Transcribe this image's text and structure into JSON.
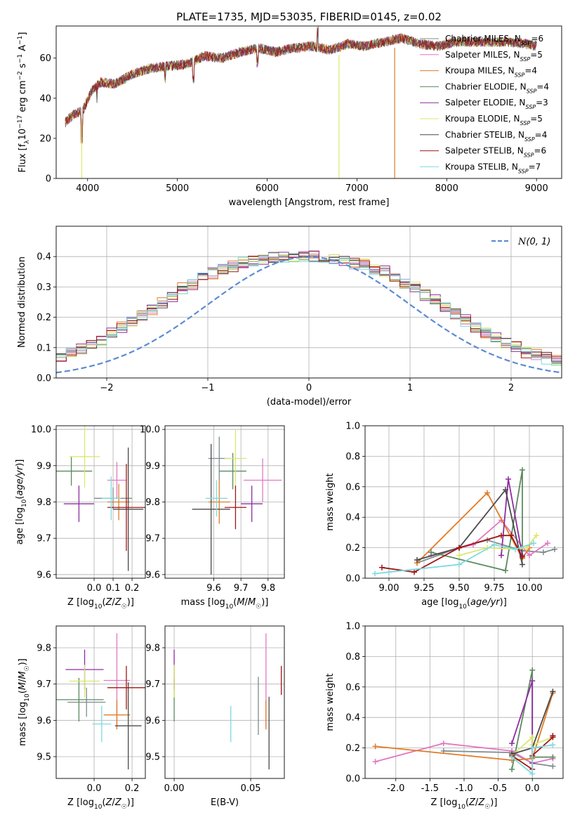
{
  "page_title": "PLATE=1735, MJD=53035, FIBERID=0145, z=0.02",
  "models": [
    {
      "name": "Chabrier MILES",
      "nssp": "6",
      "color": "#7f8c8d"
    },
    {
      "name": "Salpeter MILES",
      "nssp": "5",
      "color": "#e377c2"
    },
    {
      "name": "Kroupa MILES",
      "nssp": "4",
      "color": "#e07b26"
    },
    {
      "name": "Chabrier ELODIE",
      "nssp": "4",
      "color": "#5a8a5e"
    },
    {
      "name": "Salpeter ELODIE",
      "nssp": "3",
      "color": "#8e2ca0"
    },
    {
      "name": "Kroupa ELODIE",
      "nssp": "5",
      "color": "#dbe86a"
    },
    {
      "name": "Chabrier STELIB",
      "nssp": "4",
      "color": "#4a4a4a"
    },
    {
      "name": "Salpeter STELIB",
      "nssp": "6",
      "color": "#a01616"
    },
    {
      "name": "Kroupa STELIB",
      "nssp": "7",
      "color": "#7fd9e0"
    }
  ],
  "legend_nssp_label": "N",
  "legend_nssp_sub": "SSP",
  "chart_data": [
    {
      "id": "spectrum",
      "type": "line",
      "title": "PLATE=1735, MJD=53035, FIBERID=0145, z=0.02",
      "xlabel": "wavelength [Angstrom, rest frame]",
      "ylabel": "Flux [f_λ 10^-17 erg cm^-2 s^-1 A^-1]",
      "xlim": [
        3650,
        9280
      ],
      "ylim": [
        0,
        76
      ],
      "xticks": [
        4000,
        5000,
        6000,
        7000,
        8000,
        9000
      ],
      "yticks": [
        0,
        20,
        40,
        60
      ],
      "continuum": [
        [
          3750,
          28
        ],
        [
          3850,
          32
        ],
        [
          3950,
          34
        ],
        [
          4050,
          44
        ],
        [
          4150,
          48
        ],
        [
          4300,
          47
        ],
        [
          4500,
          52
        ],
        [
          4700,
          55
        ],
        [
          4900,
          56
        ],
        [
          5100,
          57
        ],
        [
          5300,
          61
        ],
        [
          5500,
          60
        ],
        [
          5700,
          63
        ],
        [
          5900,
          65
        ],
        [
          6100,
          63
        ],
        [
          6300,
          65
        ],
        [
          6500,
          66
        ],
        [
          6700,
          64
        ],
        [
          6900,
          67
        ],
        [
          7100,
          66
        ],
        [
          7300,
          68
        ],
        [
          7500,
          70
        ],
        [
          7700,
          67
        ],
        [
          7900,
          66
        ],
        [
          8100,
          68
        ],
        [
          8300,
          68
        ],
        [
          8500,
          68
        ],
        [
          8700,
          68
        ],
        [
          8900,
          67
        ],
        [
          9000,
          66
        ]
      ],
      "absorption_dips": [
        [
          3935,
          0
        ],
        [
          6800,
          0
        ],
        [
          7420,
          0
        ]
      ]
    },
    {
      "id": "residual-histogram",
      "type": "histogram",
      "xlabel": "(data-model)/error",
      "ylabel": "Normed distribution",
      "xlim": [
        -2.5,
        2.5
      ],
      "ylim": [
        0,
        0.5
      ],
      "xticks": [
        -2,
        -1,
        0,
        1,
        2
      ],
      "yticks": [
        0.0,
        0.1,
        0.2,
        0.3,
        0.4
      ],
      "bin_width": 0.1,
      "gaussian_label": "N(0,1)",
      "gaussian_color": "#5b8bd4",
      "series_base": [
        0.04,
        0.045,
        0.05,
        0.055,
        0.06,
        0.07,
        0.085,
        0.095,
        0.11,
        0.13,
        0.145,
        0.165,
        0.185,
        0.205,
        0.225,
        0.245,
        0.27,
        0.295,
        0.31,
        0.33,
        0.345,
        0.36,
        0.37,
        0.38,
        0.385,
        0.39,
        0.395,
        0.4,
        0.4,
        0.4,
        0.4,
        0.4,
        0.395,
        0.39,
        0.38,
        0.375,
        0.36,
        0.35,
        0.33,
        0.31,
        0.3,
        0.275,
        0.255,
        0.235,
        0.215,
        0.19,
        0.17,
        0.15,
        0.13,
        0.115,
        0.1,
        0.085,
        0.075,
        0.065,
        0.055,
        0.05,
        0.045,
        0.04,
        0.035,
        0.03
      ],
      "series_noise": [
        0.012,
        0.018,
        0.02,
        0.015,
        0.02,
        0.018,
        0.016,
        0.02,
        0.022
      ]
    },
    {
      "id": "age-vs-z",
      "type": "errorbar",
      "xlabel": "Z [log10(Z/Z☉)]",
      "ylabel": "age [log10(age/yr)]",
      "xlim": [
        -0.2,
        0.27
      ],
      "ylim": [
        9.59,
        10.01
      ],
      "xticks": [
        0.0,
        0.1,
        0.2
      ],
      "yticks": [
        9.6,
        9.7,
        9.8,
        9.9,
        10.0
      ],
      "points": [
        {
          "x": 0.1,
          "xerr": 0.1,
          "y": 9.81,
          "yerr": 0.03
        },
        {
          "x": 0.12,
          "xerr": 0.05,
          "y": 9.86,
          "yerr": 0.05
        },
        {
          "x": 0.13,
          "xerr": 0.06,
          "y": 9.8,
          "yerr": 0.05
        },
        {
          "x": -0.12,
          "xerr": 0.11,
          "y": 9.885,
          "yerr": 0.04
        },
        {
          "x": -0.08,
          "xerr": 0.08,
          "y": 9.795,
          "yerr": 0.05
        },
        {
          "x": -0.05,
          "xerr": 0.08,
          "y": 9.925,
          "yerr": 0.085
        },
        {
          "x": 0.18,
          "xerr": 0.08,
          "y": 9.78,
          "yerr": 0.17
        },
        {
          "x": 0.17,
          "xerr": 0.1,
          "y": 9.785,
          "yerr": 0.12
        },
        {
          "x": 0.09,
          "xerr": 0.05,
          "y": 9.81,
          "yerr": 0.06
        }
      ]
    },
    {
      "id": "age-vs-mass",
      "type": "errorbar",
      "xlabel": "mass [log10(M/M☉)]",
      "ylabel": "",
      "xlim": [
        9.42,
        9.86
      ],
      "ylim": [
        9.59,
        10.01
      ],
      "xticks": [
        9.6,
        9.7,
        9.8
      ],
      "yticks": [
        9.6,
        9.7,
        9.8,
        9.9,
        10.0
      ],
      "points": [
        {
          "x": 9.62,
          "xerr": 0.04,
          "y": 9.92,
          "yerr": 0.06
        },
        {
          "x": 9.78,
          "xerr": 0.07,
          "y": 9.86,
          "yerr": 0.06
        },
        {
          "x": 9.62,
          "xerr": 0.04,
          "y": 9.8,
          "yerr": 0.06
        },
        {
          "x": 9.67,
          "xerr": 0.05,
          "y": 9.885,
          "yerr": 0.05
        },
        {
          "x": 9.74,
          "xerr": 0.04,
          "y": 9.795,
          "yerr": 0.05
        },
        {
          "x": 9.68,
          "xerr": 0.04,
          "y": 9.92,
          "yerr": 0.08
        },
        {
          "x": 9.59,
          "xerr": 0.07,
          "y": 9.78,
          "yerr": 0.18
        },
        {
          "x": 9.68,
          "xerr": 0.04,
          "y": 9.785,
          "yerr": 0.06
        },
        {
          "x": 9.61,
          "xerr": 0.04,
          "y": 9.81,
          "yerr": 0.05
        }
      ]
    },
    {
      "id": "weight-vs-age",
      "type": "line",
      "xlabel": "age [log10(age/yr)]",
      "ylabel": "mass weight",
      "xlim": [
        8.83,
        10.24
      ],
      "ylim": [
        0,
        1.0
      ],
      "xticks": [
        9.0,
        9.25,
        9.5,
        9.75,
        10.0
      ],
      "yticks": [
        0.0,
        0.2,
        0.4,
        0.6,
        0.8,
        1.0
      ],
      "series": [
        {
          "x": [
            9.2,
            9.5,
            9.7,
            9.95,
            10.1,
            10.18
          ],
          "y": [
            0.1,
            0.2,
            0.25,
            0.18,
            0.17,
            0.19
          ]
        },
        {
          "x": [
            9.3,
            9.6,
            9.8,
            10.0,
            10.13
          ],
          "y": [
            0.15,
            0.22,
            0.38,
            0.15,
            0.23
          ]
        },
        {
          "x": [
            9.2,
            9.7,
            9.95,
            10.0
          ],
          "y": [
            0.1,
            0.56,
            0.13,
            0.2
          ]
        },
        {
          "x": [
            9.3,
            9.83,
            9.95,
            9.95
          ],
          "y": [
            0.17,
            0.05,
            0.71,
            0.15
          ]
        },
        {
          "x": [
            9.8,
            9.85,
            9.95
          ],
          "y": [
            0.15,
            0.65,
            0.15
          ]
        },
        {
          "x": [
            9.5,
            9.7,
            9.9,
            9.98,
            10.05
          ],
          "y": [
            0.15,
            0.2,
            0.19,
            0.2,
            0.28
          ]
        },
        {
          "x": [
            9.2,
            9.5,
            9.83,
            9.95
          ],
          "y": [
            0.12,
            0.2,
            0.58,
            0.09
          ]
        },
        {
          "x": [
            8.95,
            9.18,
            9.5,
            9.8,
            9.87,
            9.95
          ],
          "y": [
            0.07,
            0.04,
            0.2,
            0.28,
            0.28,
            0.14
          ]
        },
        {
          "x": [
            8.9,
            9.0,
            9.5,
            9.75,
            9.9,
            10.03
          ],
          "y": [
            0.03,
            0.04,
            0.09,
            0.22,
            0.19,
            0.23
          ]
        }
      ]
    },
    {
      "id": "mass-vs-z",
      "type": "errorbar",
      "xlabel": "Z [log10(Z/Z☉)]",
      "ylabel": "mass [log10(M/M☉)]",
      "xlim": [
        -0.2,
        0.27
      ],
      "ylim": [
        9.44,
        9.86
      ],
      "xticks": [
        0.0,
        0.2
      ],
      "yticks": [
        9.5,
        9.6,
        9.7,
        9.8
      ],
      "points": [
        {
          "x": -0.04,
          "xerr": 0.1,
          "y": 9.65,
          "yerr": 0.04
        },
        {
          "x": 0.12,
          "xerr": 0.07,
          "y": 9.71,
          "yerr": 0.13
        },
        {
          "x": 0.12,
          "xerr": 0.07,
          "y": 9.615,
          "yerr": 0.04
        },
        {
          "x": -0.08,
          "xerr": 0.13,
          "y": 9.657,
          "yerr": 0.06
        },
        {
          "x": -0.05,
          "xerr": 0.1,
          "y": 9.74,
          "yerr": 0.055
        },
        {
          "x": -0.05,
          "xerr": 0.08,
          "y": 9.708,
          "yerr": 0.045
        },
        {
          "x": 0.18,
          "xerr": 0.07,
          "y": 9.585,
          "yerr": 0.12
        },
        {
          "x": 0.17,
          "xerr": 0.1,
          "y": 9.69,
          "yerr": 0.06
        },
        {
          "x": 0.04,
          "xerr": 0.05,
          "y": 9.59,
          "yerr": 0.05
        }
      ]
    },
    {
      "id": "mass-vs-ebv",
      "type": "errorbar",
      "xlabel": "E(B-V)",
      "ylabel": "",
      "xlim": [
        -0.006,
        0.072
      ],
      "ylim": [
        9.44,
        9.86
      ],
      "xticks": [
        0.0,
        0.05
      ],
      "yticks": [
        9.5,
        9.6,
        9.7,
        9.8
      ],
      "points": [
        {
          "x": 0.055,
          "xerr": 0,
          "y": 9.64,
          "yerr": 0.08
        },
        {
          "x": 0.06,
          "xerr": 0,
          "y": 9.71,
          "yerr": 0.13
        },
        {
          "x": 0.06,
          "xerr": 0,
          "y": 9.615,
          "yerr": 0.04
        },
        {
          "x": 0.0,
          "xerr": 0,
          "y": 9.657,
          "yerr": 0.06
        },
        {
          "x": 0.0,
          "xerr": 0,
          "y": 9.74,
          "yerr": 0.055
        },
        {
          "x": 0.0,
          "xerr": 0,
          "y": 9.708,
          "yerr": 0.045
        },
        {
          "x": 0.062,
          "xerr": 0,
          "y": 9.565,
          "yerr": 0.1
        },
        {
          "x": 0.07,
          "xerr": 0,
          "y": 9.71,
          "yerr": 0.04
        },
        {
          "x": 0.037,
          "xerr": 0,
          "y": 9.59,
          "yerr": 0.05
        }
      ]
    },
    {
      "id": "weight-vs-z",
      "type": "line",
      "xlabel": "Z [log10(Z/Z☉)]",
      "ylabel": "mass weight",
      "xlim": [
        -2.45,
        0.45
      ],
      "ylim": [
        0,
        1.0
      ],
      "xticks": [
        -2.0,
        -1.5,
        -1.0,
        -0.5,
        0.0
      ],
      "yticks": [
        0.0,
        0.2,
        0.4,
        0.6,
        0.8,
        1.0
      ],
      "series": [
        {
          "x": [
            -1.3,
            -0.3,
            0.0,
            0.3
          ],
          "y": [
            0.18,
            0.17,
            0.1,
            0.08
          ]
        },
        {
          "x": [
            -2.3,
            -1.3,
            -0.3,
            0.0,
            0.3
          ],
          "y": [
            0.11,
            0.23,
            0.18,
            0.1,
            0.13
          ]
        },
        {
          "x": [
            -2.3,
            -0.3,
            0.0,
            0.3
          ],
          "y": [
            0.21,
            0.12,
            0.13,
            0.56
          ]
        },
        {
          "x": [
            -0.3,
            0.0,
            0.0,
            0.3
          ],
          "y": [
            0.06,
            0.71,
            0.14,
            0.14
          ]
        },
        {
          "x": [
            -0.3,
            0.0,
            0.0
          ],
          "y": [
            0.23,
            0.64,
            0.1
          ]
        },
        {
          "x": [
            -0.3,
            0.0,
            0.0,
            0.3
          ],
          "y": [
            0.15,
            0.27,
            0.22,
            0.27
          ]
        },
        {
          "x": [
            -0.3,
            0.0,
            0.3
          ],
          "y": [
            0.16,
            0.2,
            0.57
          ]
        },
        {
          "x": [
            -0.3,
            0.0,
            0.0,
            0.3,
            0.3
          ],
          "y": [
            0.15,
            0.06,
            0.15,
            0.27,
            0.28
          ]
        },
        {
          "x": [
            -0.3,
            0.0,
            0.0,
            0.3
          ],
          "y": [
            0.14,
            0.03,
            0.2,
            0.22
          ]
        }
      ]
    }
  ]
}
